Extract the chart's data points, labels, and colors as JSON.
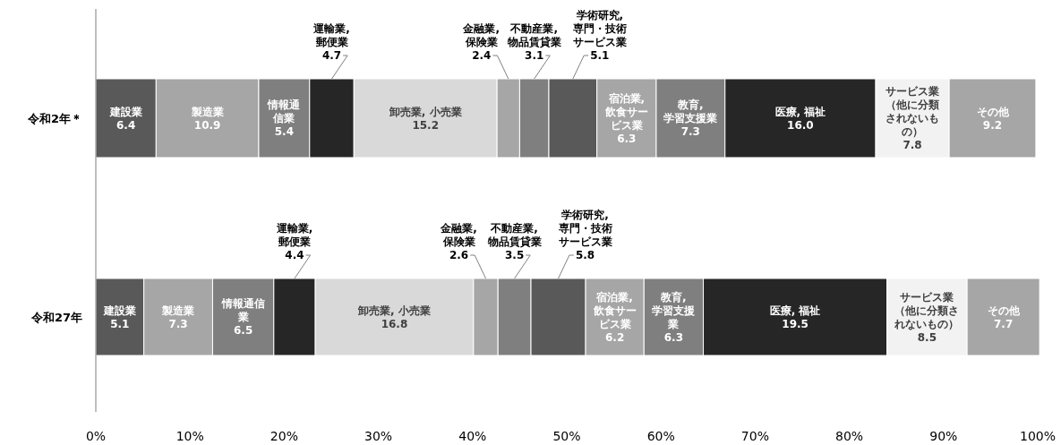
{
  "chart_data": {
    "type": "bar",
    "orientation": "horizontal",
    "stacked": true,
    "grid": false,
    "categories": [
      "令和2年＊",
      "令和27年"
    ],
    "xlim": [
      0,
      100
    ],
    "xticks": [
      {
        "value": 0,
        "label": "0%"
      },
      {
        "value": 10,
        "label": "10%"
      },
      {
        "value": 20,
        "label": "20%"
      },
      {
        "value": 30,
        "label": "30%"
      },
      {
        "value": 40,
        "label": "40%"
      },
      {
        "value": 50,
        "label": "50%"
      },
      {
        "value": 60,
        "label": "60%"
      },
      {
        "value": 70,
        "label": "70%"
      },
      {
        "value": 80,
        "label": "80%"
      },
      {
        "value": 90,
        "label": "90%"
      },
      {
        "value": 100,
        "label": "100%"
      }
    ],
    "series": [
      {
        "name": "建設業",
        "color": "#595959",
        "values": [
          6.4,
          5.1
        ],
        "value_labels": [
          "6.4",
          "5.1"
        ]
      },
      {
        "name": "製造業",
        "color": "#a6a6a6",
        "values": [
          10.9,
          7.3
        ],
        "value_labels": [
          "10.9",
          "7.3"
        ]
      },
      {
        "name": "情報通信業",
        "color": "#7f7f7f",
        "values": [
          5.4,
          6.5
        ],
        "value_labels": [
          "5.4",
          "6.5"
        ]
      },
      {
        "name": "運輸業, 郵便業",
        "color": "#262626",
        "values": [
          4.7,
          4.4
        ],
        "value_labels": [
          "4.7",
          "4.4"
        ]
      },
      {
        "name": "卸売業, 小売業",
        "color": "#d9d9d9",
        "values": [
          15.2,
          16.8
        ],
        "value_labels": [
          "15.2",
          "16.8"
        ]
      },
      {
        "name": "金融業, 保険業",
        "color": "#a6a6a6",
        "values": [
          2.4,
          2.6
        ],
        "value_labels": [
          "2.4",
          "2.6"
        ]
      },
      {
        "name": "不動産業, 物品賃貸業",
        "color": "#7f7f7f",
        "values": [
          3.1,
          3.5
        ],
        "value_labels": [
          "3.1",
          "3.5"
        ]
      },
      {
        "name": "学術研究, 専門・技術サービス業",
        "color": "#595959",
        "values": [
          5.1,
          5.8
        ],
        "value_labels": [
          "5.1",
          "5.8"
        ]
      },
      {
        "name": "宿泊業, 飲食サービス業",
        "color": "#a6a6a6",
        "values": [
          6.3,
          6.2
        ],
        "value_labels": [
          "6.3",
          "6.2"
        ]
      },
      {
        "name": "教育, 学習支援業",
        "color": "#7f7f7f",
        "values": [
          7.3,
          6.3
        ],
        "value_labels": [
          "7.3",
          "6.3"
        ]
      },
      {
        "name": "医療, 福祉",
        "color": "#262626",
        "values": [
          16.0,
          19.5
        ],
        "value_labels": [
          "16.0",
          "19.5"
        ]
      },
      {
        "name": "サービス業（他に分類されないもの）",
        "color": "#f2f2f2",
        "values": [
          7.8,
          8.5
        ],
        "value_labels": [
          "7.8",
          "8.5"
        ]
      },
      {
        "name": "その他",
        "color": "#a6a6a6",
        "values": [
          9.2,
          7.7
        ],
        "value_labels": [
          "9.2",
          "7.7"
        ]
      }
    ]
  }
}
